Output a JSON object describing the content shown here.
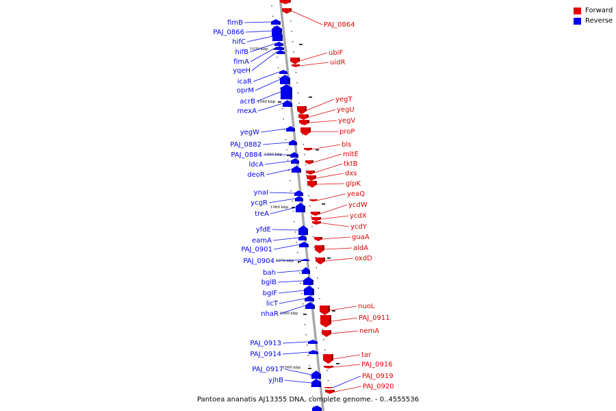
{
  "colors": {
    "forward": "#e00000",
    "reverse": "#0000ee",
    "backbone": "#a8a8a8",
    "leader_forward": "#e00000",
    "leader_reverse": "#0000ee"
  },
  "legend": {
    "forward_label": "Forward",
    "reverse_label": "Reverse"
  },
  "caption": "Pantoea ananatis AJ13355 DNA, complete genome. - 0..4555536",
  "scale_labels": [
    "1030 kbp",
    "1040 kbp",
    "1050 kbp",
    "1060 kbp",
    "1070 kbp",
    "1080 kbp",
    "1090 kbp"
  ],
  "forward_genes": [
    "PAJ_0864",
    "ubiF",
    "uidR",
    "yegT",
    "yegU",
    "yegV",
    "proP",
    "bls",
    "mltE",
    "tktB",
    "dxs",
    "glpK",
    "yeaQ",
    "ycdW",
    "ycdX",
    "ycdY",
    "guaA",
    "aldA",
    "oxdD",
    "nuoL",
    "PAJ_0911",
    "nemA",
    "tar",
    "PAJ_0916",
    "PAJ_0919",
    "PAJ_0920"
  ],
  "reverse_genes": [
    "fimB",
    "PAJ_0866",
    "hifC",
    "hifB",
    "fimA",
    "yqeH",
    "icaR",
    "oprM",
    "acrB",
    "mexA",
    "yegW",
    "PAJ_0882",
    "PAJ_0884",
    "ldcA",
    "deoR",
    "ynaI",
    "ycgR",
    "treA",
    "yfdE",
    "eamA",
    "PAJ_0901",
    "PAJ_0904",
    "bah",
    "bglB",
    "bglF",
    "licT",
    "nhaR",
    "PAJ_0913",
    "PAJ_0914",
    "PAJ_0917",
    "yjhB"
  ]
}
